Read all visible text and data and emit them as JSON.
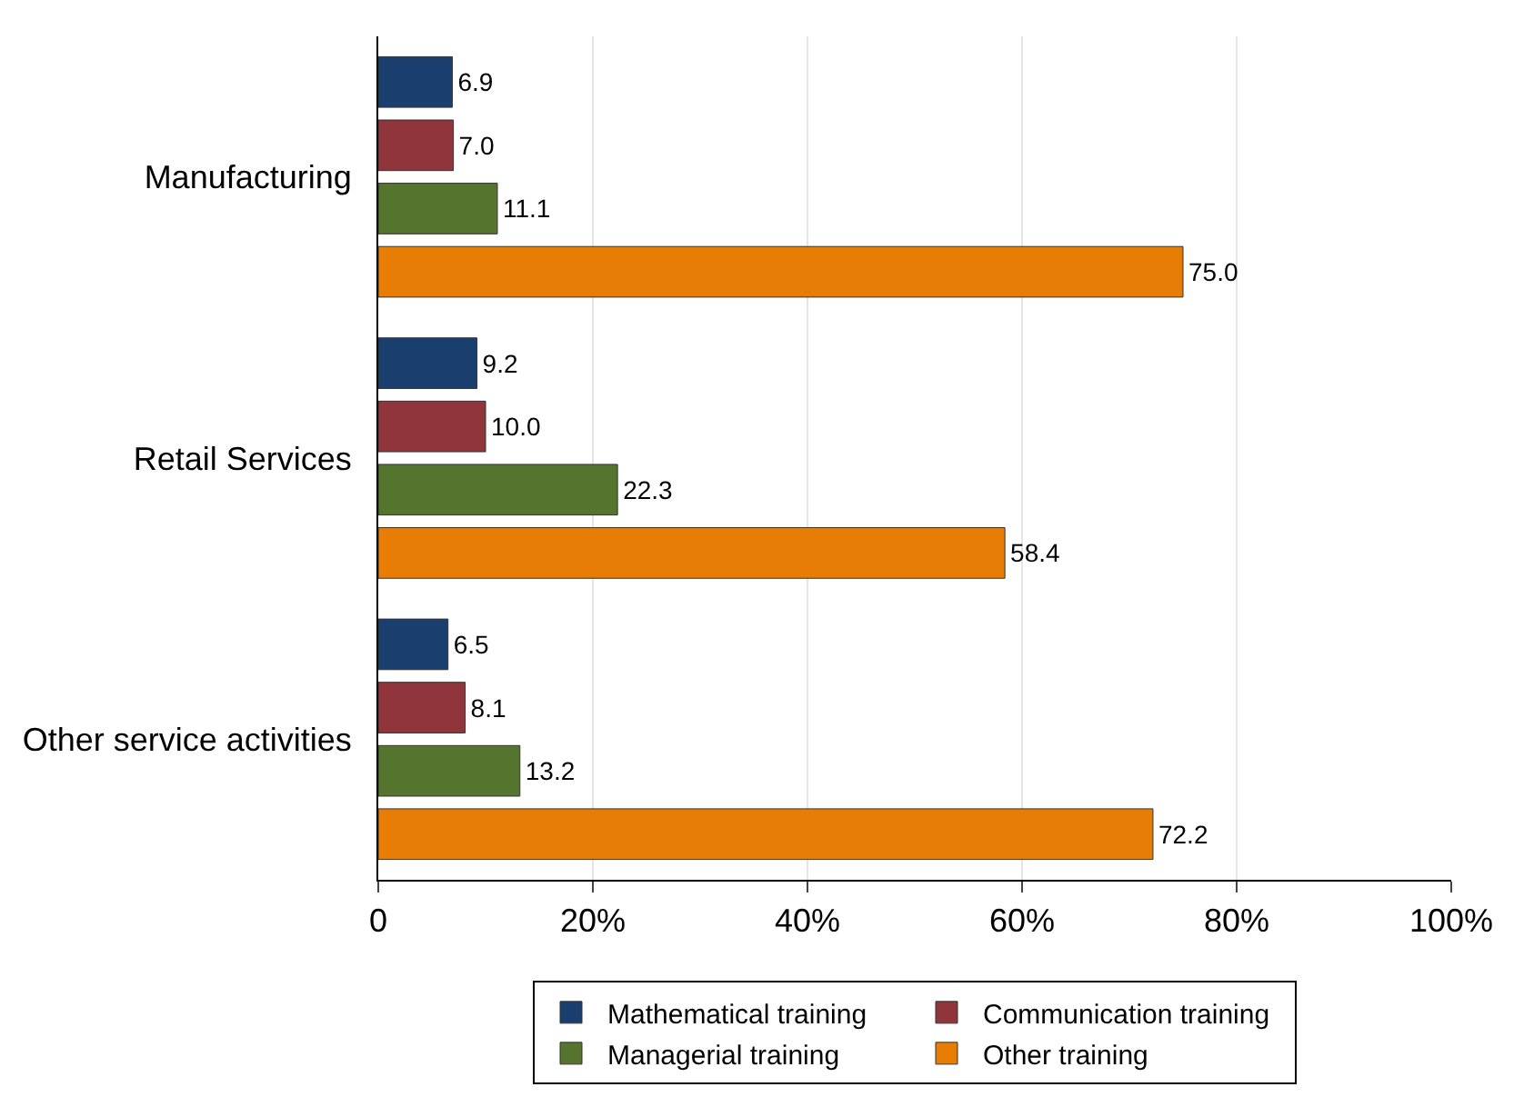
{
  "chart_data": {
    "type": "bar",
    "orientation": "horizontal",
    "categories": [
      "Manufacturing",
      "Retail Services",
      "Other service activities"
    ],
    "series": [
      {
        "name": "Mathematical training",
        "color": "#1a3f6f",
        "values": [
          6.9,
          9.2,
          6.5
        ],
        "value_labels": [
          "6.9",
          "9.2",
          "6.5"
        ]
      },
      {
        "name": "Communication training",
        "color": "#90353b",
        "values": [
          7.0,
          10.0,
          8.1
        ],
        "value_labels": [
          "7.0",
          "10.0",
          "8.1"
        ]
      },
      {
        "name": "Managerial training",
        "color": "#55752f",
        "values": [
          11.1,
          22.3,
          13.2
        ],
        "value_labels": [
          "11.1",
          "22.3",
          "13.2"
        ]
      },
      {
        "name": "Other training",
        "color": "#e87d06",
        "values": [
          75.0,
          58.4,
          72.2
        ],
        "value_labels": [
          "75.0",
          "58.4",
          "72.2"
        ]
      }
    ],
    "xlim": [
      0,
      100
    ],
    "xticks": [
      0,
      {
        "value": 20,
        "label": "20%"
      },
      {
        "value": 40,
        "label": "40%"
      },
      {
        "value": 60,
        "label": "60%"
      },
      {
        "value": 80,
        "label": "80%"
      },
      {
        "value": 100,
        "label": "100%"
      }
    ],
    "grid": "x",
    "legend": "bottom"
  }
}
